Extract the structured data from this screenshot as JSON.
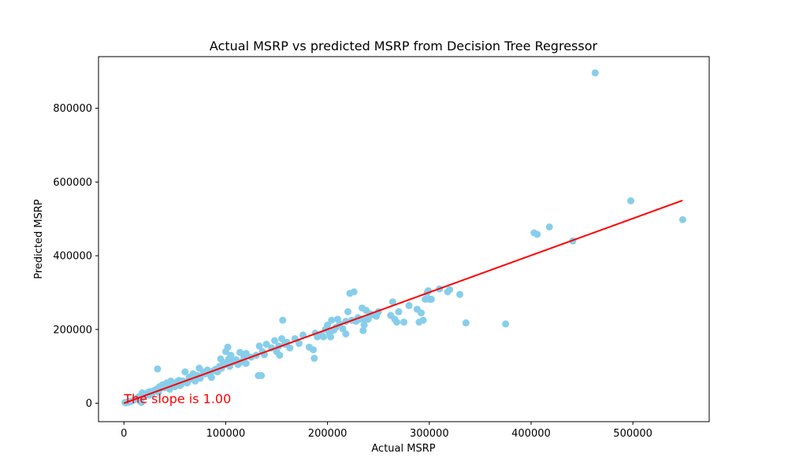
{
  "chart_data": {
    "type": "scatter",
    "title": "Actual MSRP vs predicted MSRP from Decision Tree Regressor",
    "xlabel": "Actual MSRP",
    "ylabel": "Predicted MSRP",
    "xlim": [
      -25000,
      575000
    ],
    "ylim": [
      -50000,
      940000
    ],
    "x_ticks": [
      0,
      100000,
      200000,
      300000,
      400000,
      500000
    ],
    "x_tick_labels": [
      "0",
      "100000",
      "200000",
      "300000",
      "400000",
      "500000"
    ],
    "y_ticks": [
      0,
      200000,
      400000,
      600000,
      800000
    ],
    "y_tick_labels": [
      "0",
      "200000",
      "400000",
      "600000",
      "800000"
    ],
    "grid": false,
    "point_color": "#87ceeb",
    "line_color": "#ff0000",
    "annotation": {
      "text": "The slope is 1.00",
      "x": 0,
      "y": 0,
      "color": "#ff0000"
    },
    "fit_line": {
      "x": [
        0,
        548800
      ],
      "y": [
        0,
        550000
      ],
      "slope": 1.0
    },
    "series": [
      {
        "points": [
          [
            1000,
            2000
          ],
          [
            2000,
            1000
          ],
          [
            3000,
            3000
          ],
          [
            4000,
            2500
          ],
          [
            5000,
            5000
          ],
          [
            6000,
            4000
          ],
          [
            8000,
            6000
          ],
          [
            10000,
            9000
          ],
          [
            12000,
            12000
          ],
          [
            14000,
            15000
          ],
          [
            15000,
            18000
          ],
          [
            16000,
            14000
          ],
          [
            17000,
            2000
          ],
          [
            18000,
            28000
          ],
          [
            20000,
            20000
          ],
          [
            22000,
            25000
          ],
          [
            24000,
            30000
          ],
          [
            25000,
            22000
          ],
          [
            26000,
            32000
          ],
          [
            28000,
            28000
          ],
          [
            30000,
            35000
          ],
          [
            32000,
            38000
          ],
          [
            33000,
            93000
          ],
          [
            34000,
            30000
          ],
          [
            35000,
            45000
          ],
          [
            36000,
            40000
          ],
          [
            38000,
            50000
          ],
          [
            40000,
            42000
          ],
          [
            42000,
            55000
          ],
          [
            44000,
            48000
          ],
          [
            45000,
            38000
          ],
          [
            46000,
            60000
          ],
          [
            48000,
            52000
          ],
          [
            50000,
            45000
          ],
          [
            52000,
            58000
          ],
          [
            54000,
            62000
          ],
          [
            55000,
            48000
          ],
          [
            56000,
            50000
          ],
          [
            58000,
            60000
          ],
          [
            60000,
            85000
          ],
          [
            62000,
            55000
          ],
          [
            64000,
            70000
          ],
          [
            65000,
            65000
          ],
          [
            66000,
            72000
          ],
          [
            68000,
            80000
          ],
          [
            70000,
            60000
          ],
          [
            72000,
            75000
          ],
          [
            74000,
            95000
          ],
          [
            75000,
            68000
          ],
          [
            78000,
            85000
          ],
          [
            80000,
            80000
          ],
          [
            82000,
            90000
          ],
          [
            85000,
            75000
          ],
          [
            86000,
            70000
          ],
          [
            88000,
            88000
          ],
          [
            90000,
            92000
          ],
          [
            92000,
            85000
          ],
          [
            94000,
            100000
          ],
          [
            95000,
            120000
          ],
          [
            96000,
            95000
          ],
          [
            98000,
            110000
          ],
          [
            100000,
            140000
          ],
          [
            100000,
            105000
          ],
          [
            102000,
            152000
          ],
          [
            103000,
            120000
          ],
          [
            104000,
            100000
          ],
          [
            105000,
            130000
          ],
          [
            106000,
            110000
          ],
          [
            108000,
            115000
          ],
          [
            110000,
            118000
          ],
          [
            112000,
            105000
          ],
          [
            114000,
            138000
          ],
          [
            115000,
            112000
          ],
          [
            118000,
            125000
          ],
          [
            120000,
            135000
          ],
          [
            120000,
            108000
          ],
          [
            125000,
            125000
          ],
          [
            130000,
            130000
          ],
          [
            132000,
            75000
          ],
          [
            133000,
            155000
          ],
          [
            135000,
            75000
          ],
          [
            136000,
            140000
          ],
          [
            138000,
            132000
          ],
          [
            140000,
            160000
          ],
          [
            145000,
            150000
          ],
          [
            148000,
            170000
          ],
          [
            150000,
            140000
          ],
          [
            152000,
            155000
          ],
          [
            153000,
            130000
          ],
          [
            155000,
            175000
          ],
          [
            156000,
            225000
          ],
          [
            158000,
            160000
          ],
          [
            160000,
            165000
          ],
          [
            163000,
            150000
          ],
          [
            168000,
            175000
          ],
          [
            172000,
            162000
          ],
          [
            176000,
            185000
          ],
          [
            182000,
            152000
          ],
          [
            186000,
            145000
          ],
          [
            187000,
            122000
          ],
          [
            188000,
            190000
          ],
          [
            190000,
            180000
          ],
          [
            194000,
            185000
          ],
          [
            196000,
            180000
          ],
          [
            198000,
            200000
          ],
          [
            200000,
            212000
          ],
          [
            202000,
            190000
          ],
          [
            203000,
            180000
          ],
          [
            204000,
            225000
          ],
          [
            206000,
            198000
          ],
          [
            208000,
            205000
          ],
          [
            210000,
            228000
          ],
          [
            212000,
            215000
          ],
          [
            215000,
            202000
          ],
          [
            218000,
            188000
          ],
          [
            218000,
            222000
          ],
          [
            220000,
            248000
          ],
          [
            222000,
            298000
          ],
          [
            224000,
            225000
          ],
          [
            226000,
            302000
          ],
          [
            228000,
            222000
          ],
          [
            230000,
            232000
          ],
          [
            232000,
            228000
          ],
          [
            234000,
            258000
          ],
          [
            235000,
            197000
          ],
          [
            236000,
            212000
          ],
          [
            237000,
            226000
          ],
          [
            238000,
            252000
          ],
          [
            240000,
            228000
          ],
          [
            242000,
            242000
          ],
          [
            245000,
            240000
          ],
          [
            248000,
            236000
          ],
          [
            250000,
            248000
          ],
          [
            262000,
            238000
          ],
          [
            264000,
            275000
          ],
          [
            266000,
            228000
          ],
          [
            268000,
            220000
          ],
          [
            270000,
            248000
          ],
          [
            275000,
            220000
          ],
          [
            280000,
            265000
          ],
          [
            288000,
            255000
          ],
          [
            290000,
            220000
          ],
          [
            292000,
            245000
          ],
          [
            294000,
            225000
          ],
          [
            296000,
            282000
          ],
          [
            298000,
            300000
          ],
          [
            299000,
            305000
          ],
          [
            300000,
            282000
          ],
          [
            302000,
            282000
          ],
          [
            310000,
            310000
          ],
          [
            318000,
            302000
          ],
          [
            320000,
            308000
          ],
          [
            330000,
            295000
          ],
          [
            336000,
            218000
          ],
          [
            375000,
            215000
          ],
          [
            403000,
            462000
          ],
          [
            406000,
            458000
          ],
          [
            418000,
            478000
          ],
          [
            441000,
            440000
          ],
          [
            463000,
            896000
          ],
          [
            498000,
            549000
          ],
          [
            549000,
            498000
          ]
        ]
      }
    ]
  }
}
